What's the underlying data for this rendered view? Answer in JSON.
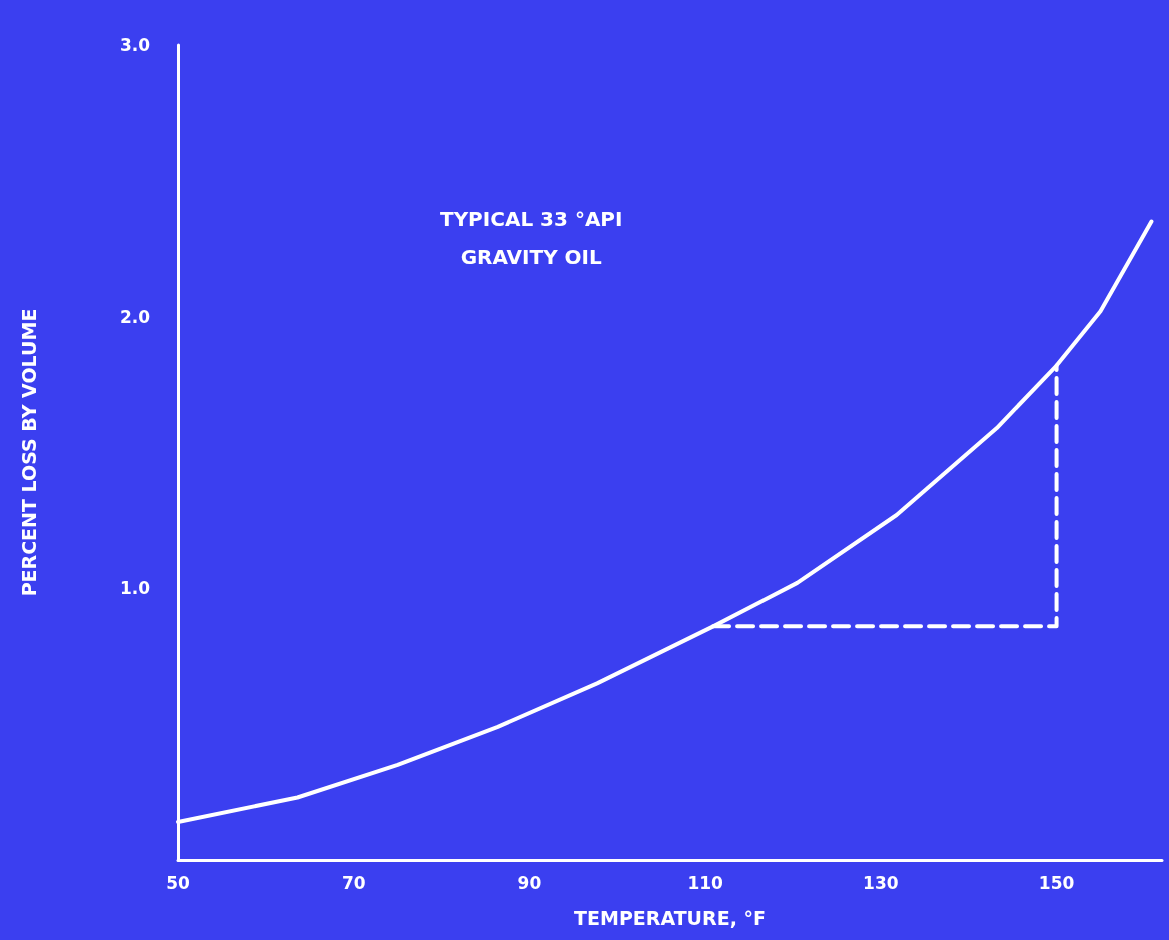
{
  "chart_data": {
    "type": "line",
    "xlabel": "TEMPERATURE, °F",
    "ylabel": "PERCENT LOSS BY VOLUME",
    "annotations": [
      "TYPICAL 33 °API\nGRAVITY OIL"
    ],
    "xlim": [
      50,
      162
    ],
    "xticks": [
      50,
      70,
      90,
      110,
      130,
      150
    ],
    "ylim": [
      0,
      3
    ],
    "yticks": [
      {
        "value": 1,
        "label": "1.0"
      },
      {
        "value": 2,
        "label": "2.0"
      },
      {
        "value": 3,
        "label": "3.0"
      }
    ],
    "grid": false,
    "marker": "none",
    "series": [
      {
        "color": "#ffffff",
        "line_style": "solid",
        "x": [
          50,
          63.6,
          75,
          86.4,
          97.7,
          110.9,
          120.5,
          131.8,
          143.2,
          150,
          155,
          160.8
        ],
        "values": [
          0.14,
          0.23,
          0.35,
          0.49,
          0.65,
          0.86,
          1.02,
          1.27,
          1.59,
          1.82,
          2.02,
          2.35
        ]
      },
      {
        "color": "#ffffff",
        "line_style": "dashed",
        "x": [
          110.9,
          150,
          150
        ],
        "values": [
          0.86,
          0.86,
          1.82
        ]
      }
    ]
  }
}
